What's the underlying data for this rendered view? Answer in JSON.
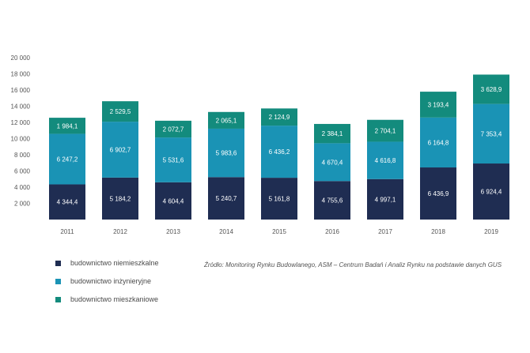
{
  "chart_data": {
    "type": "bar",
    "stacked": true,
    "categories": [
      "2011",
      "2012",
      "2013",
      "2014",
      "2015",
      "2016",
      "2017",
      "2018",
      "2019"
    ],
    "series": [
      {
        "name": "budownictwo niemieszkalne",
        "color": "#1f2d52",
        "values": [
          4344.4,
          5184.2,
          4604.4,
          5240.7,
          5161.8,
          4755.6,
          4997.1,
          6436.9,
          6924.4
        ],
        "labels": [
          "4 344,4",
          "5 184,2",
          "4 604,4",
          "5 240,7",
          "5 161,8",
          "4 755,6",
          "4 997,1",
          "6 436,9",
          "6 924,4"
        ]
      },
      {
        "name": "budownictwo inżynieryjne",
        "color": "#1a93b5",
        "values": [
          6247.2,
          6902.7,
          5531.6,
          5983.6,
          6436.2,
          4670.4,
          4616.8,
          6164.8,
          7353.4
        ],
        "labels": [
          "6 247,2",
          "6 902,7",
          "5 531,6",
          "5 983,6",
          "6 436,2",
          "4 670,4",
          "4 616,8",
          "6 164,8",
          "7 353,4"
        ]
      },
      {
        "name": "budownictwo mieszkaniowe",
        "color": "#138b7d",
        "values": [
          1984.1,
          2529.5,
          2072.7,
          2065.1,
          2124.9,
          2384.1,
          2704.1,
          3193.4,
          3628.9
        ],
        "labels": [
          "1 984,1",
          "2 529,5",
          "2 072,7",
          "2 065,1",
          "2 124,9",
          "2 384,1",
          "2 704,1",
          "3 193,4",
          "3 628,9"
        ]
      }
    ],
    "yticks": [
      2000,
      4000,
      6000,
      8000,
      10000,
      12000,
      14000,
      16000,
      18000,
      20000
    ],
    "ytick_labels": [
      "2 000",
      "4 000",
      "6 000",
      "8 000",
      "10 000",
      "12 000",
      "14 000",
      "16 000",
      "18 000",
      "20 000"
    ],
    "ylim": [
      0,
      20000
    ],
    "grid": false,
    "legend_position": "bottom-left"
  },
  "source_note": "Źródło: Monitoring Rynku Budowlanego, ASM – Centrum Badań i Analiz Rynku na podstawie danych GUS"
}
